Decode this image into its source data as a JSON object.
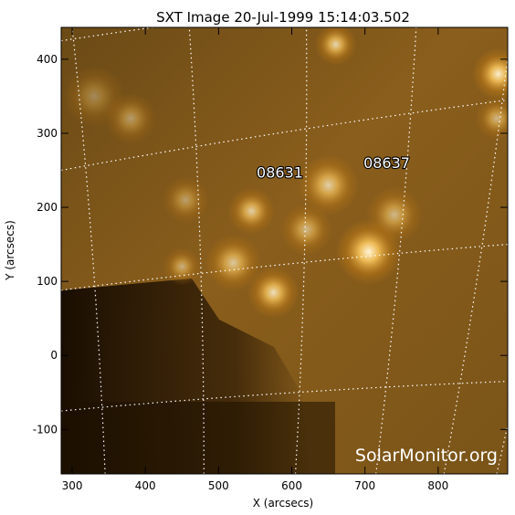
{
  "chart_data": {
    "type": "heatmap",
    "title": "SXT Image 20-Jul-1999 15:14:03.502",
    "xlabel": "X (arcsecs)",
    "ylabel": "Y (arcsecs)",
    "xlim": [
      285,
      895
    ],
    "ylim": [
      -160,
      443
    ],
    "xticks": [
      300,
      400,
      500,
      600,
      700,
      800
    ],
    "yticks": [
      -100,
      0,
      100,
      200,
      300,
      400
    ],
    "colormap": [
      "#000000",
      "#3a2000",
      "#7a4a08",
      "#c07a14",
      "#f0b040",
      "#fff0c8"
    ],
    "grid": "heliographic lat/lon grid, white dotted",
    "active_regions": [
      {
        "label": "08631",
        "x": 552,
        "y": 240
      },
      {
        "label": "08637",
        "x": 698,
        "y": 253
      }
    ],
    "bright_features": [
      {
        "x": 705,
        "y": 140,
        "intensity": 1.0,
        "size": 28
      },
      {
        "x": 575,
        "y": 85,
        "intensity": 0.85,
        "size": 22
      },
      {
        "x": 545,
        "y": 195,
        "intensity": 0.75,
        "size": 20
      },
      {
        "x": 520,
        "y": 125,
        "intensity": 0.7,
        "size": 24
      },
      {
        "x": 650,
        "y": 230,
        "intensity": 0.75,
        "size": 26
      },
      {
        "x": 620,
        "y": 170,
        "intensity": 0.6,
        "size": 22
      },
      {
        "x": 740,
        "y": 190,
        "intensity": 0.6,
        "size": 24
      },
      {
        "x": 450,
        "y": 120,
        "intensity": 0.55,
        "size": 16
      },
      {
        "x": 455,
        "y": 210,
        "intensity": 0.45,
        "size": 20
      },
      {
        "x": 380,
        "y": 320,
        "intensity": 0.45,
        "size": 22
      },
      {
        "x": 330,
        "y": 350,
        "intensity": 0.35,
        "size": 26
      },
      {
        "x": 660,
        "y": 420,
        "intensity": 0.8,
        "size": 18
      },
      {
        "x": 882,
        "y": 380,
        "intensity": 0.95,
        "size": 22
      },
      {
        "x": 880,
        "y": 320,
        "intensity": 0.6,
        "size": 18
      }
    ]
  },
  "watermark": "SolarMonitor.org"
}
